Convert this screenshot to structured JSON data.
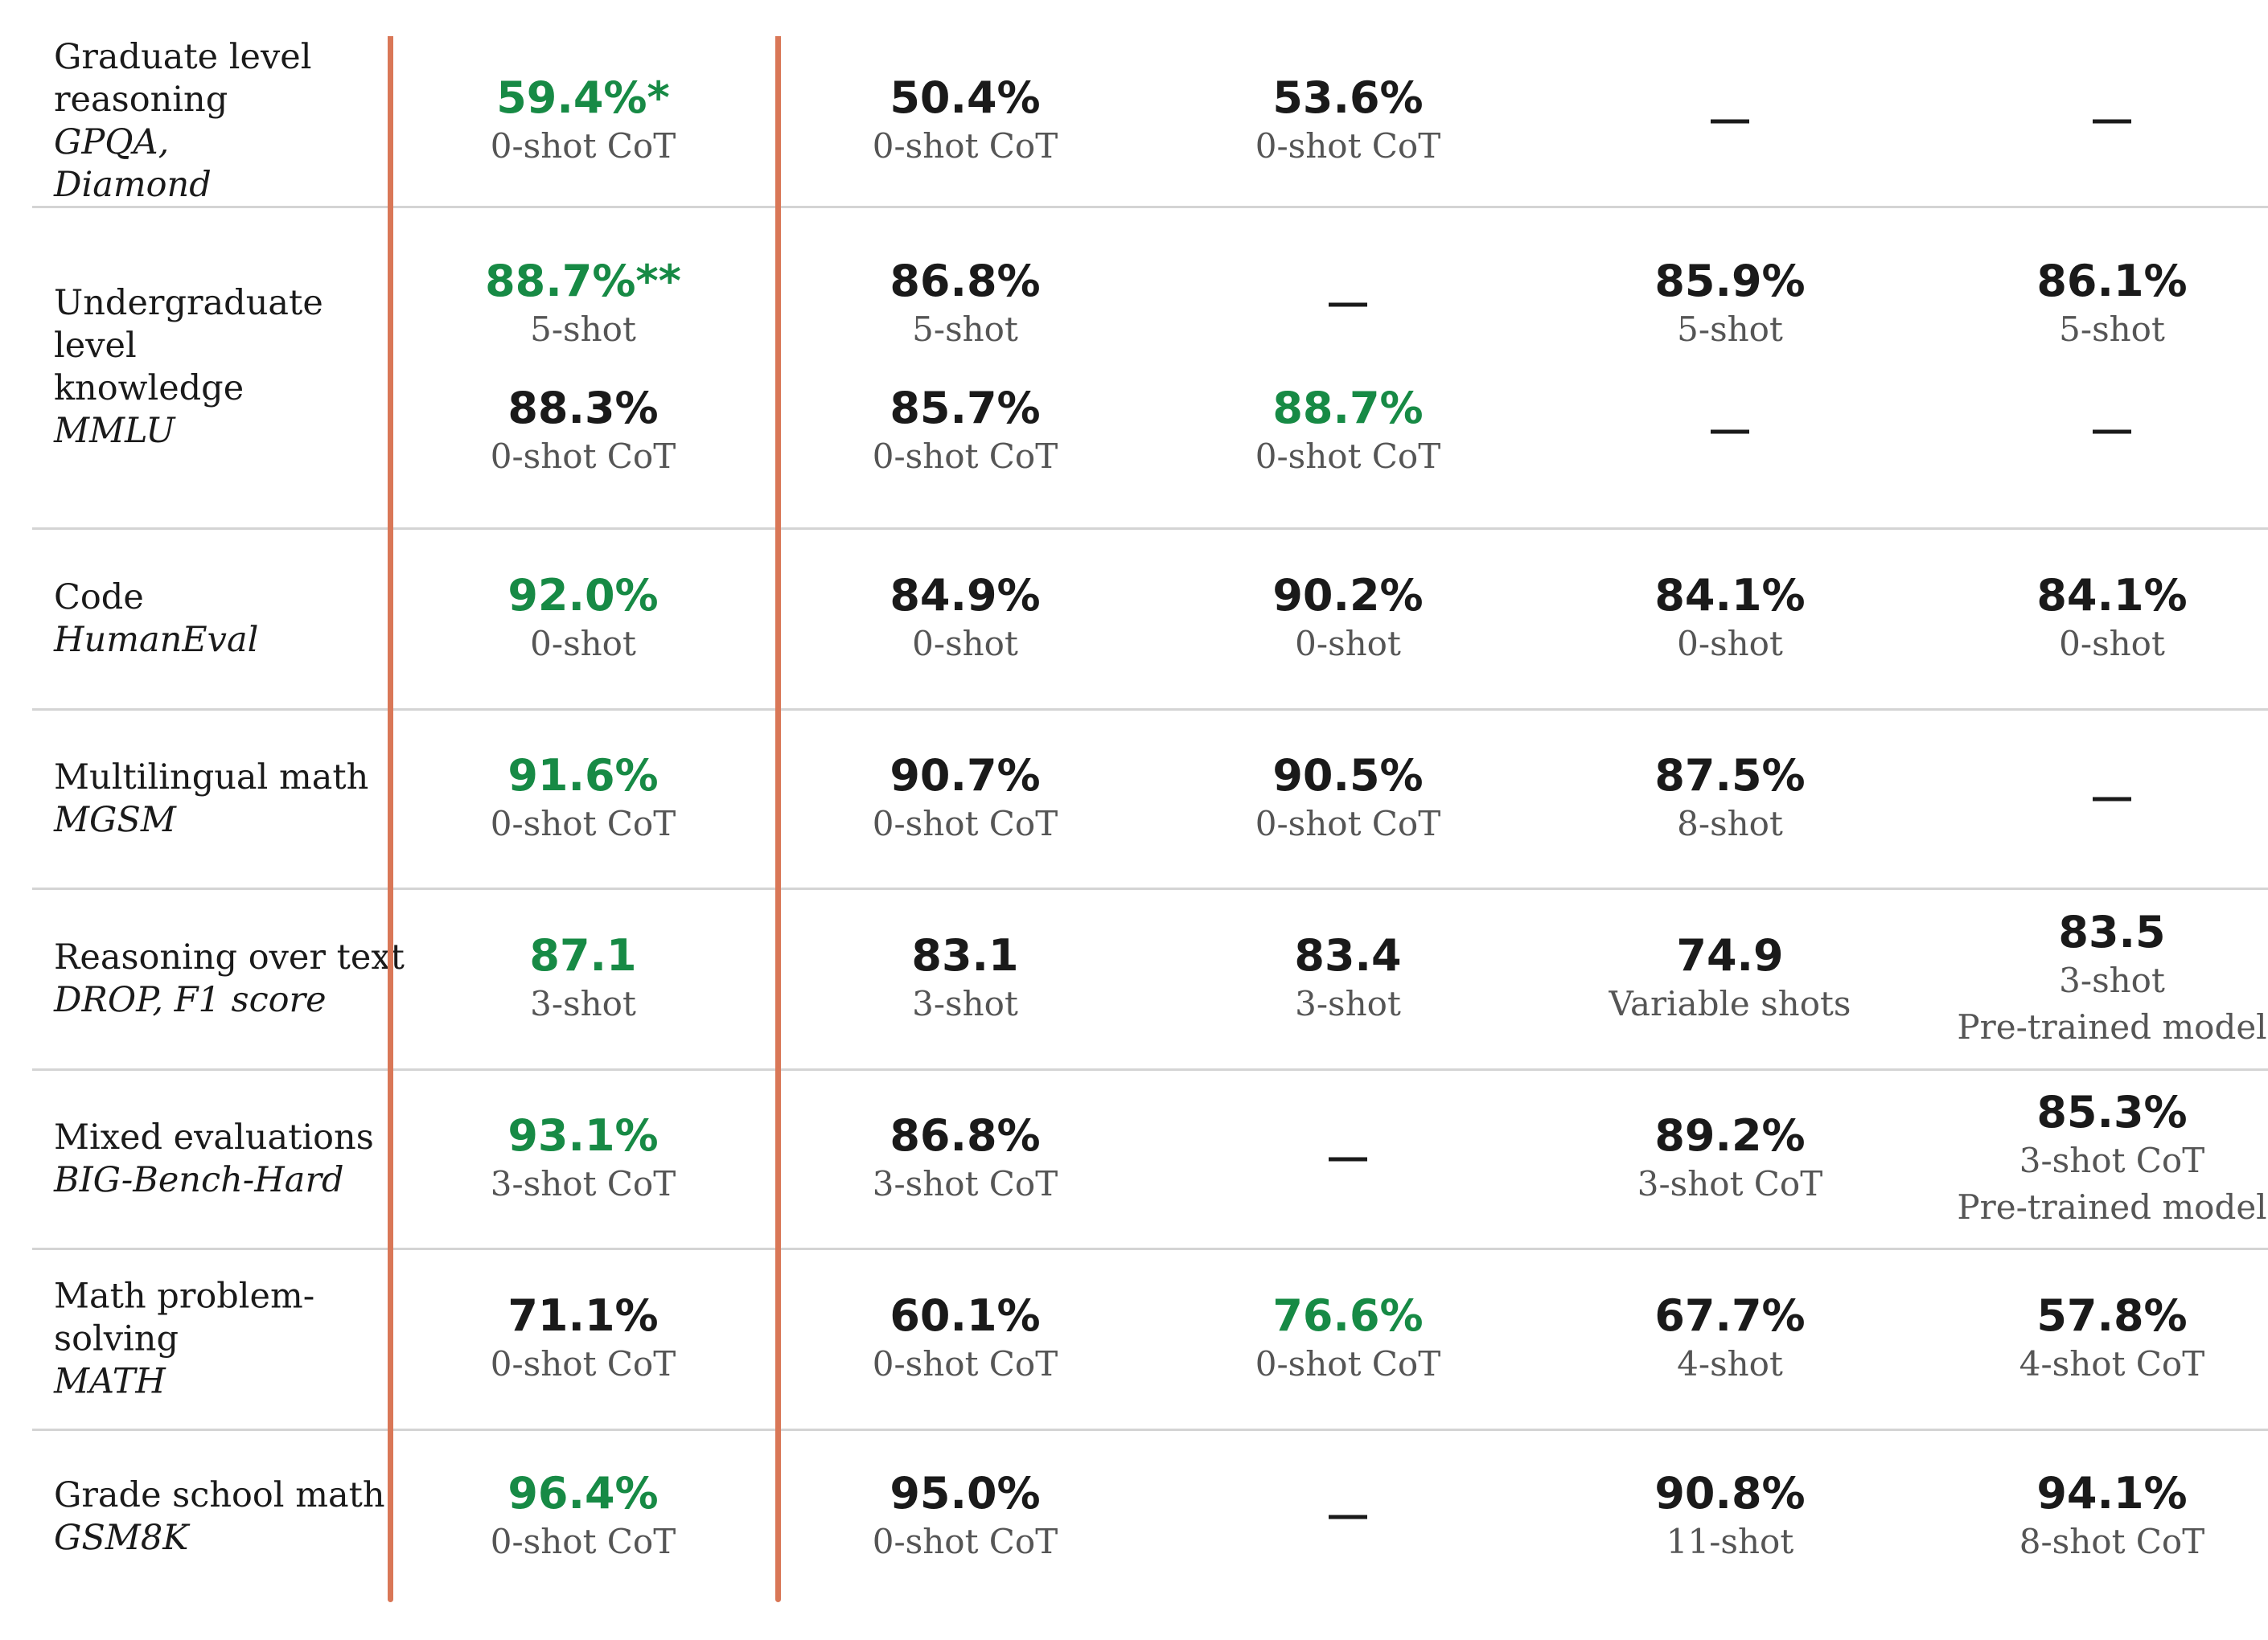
{
  "colors": {
    "accent": "#d97757",
    "best": "#178a45"
  },
  "rows": [
    {
      "title": "Graduate level reasoning",
      "bench": "GPQA, Diamond",
      "cells": [
        [
          {
            "v": "59.4%*",
            "s": "0-shot CoT",
            "best": true
          }
        ],
        [
          {
            "v": "50.4%",
            "s": "0-shot CoT"
          }
        ],
        [
          {
            "v": "53.6%",
            "s": "0-shot CoT"
          }
        ],
        [
          {
            "v": "—"
          }
        ],
        [
          {
            "v": "—"
          }
        ]
      ]
    },
    {
      "title": "Undergraduate level knowledge",
      "bench": "MMLU",
      "cells": [
        [
          {
            "v": "88.7%**",
            "s": "5-shot",
            "best": true
          },
          {
            "v": "88.3%",
            "s": "0-shot CoT"
          }
        ],
        [
          {
            "v": "86.8%",
            "s": "5-shot"
          },
          {
            "v": "85.7%",
            "s": "0-shot CoT"
          }
        ],
        [
          {
            "v": "—"
          },
          {
            "v": "88.7%",
            "s": "0-shot CoT",
            "best": true
          }
        ],
        [
          {
            "v": "85.9%",
            "s": "5-shot"
          },
          {
            "v": "—"
          }
        ],
        [
          {
            "v": "86.1%",
            "s": "5-shot"
          },
          {
            "v": "—"
          }
        ]
      ]
    },
    {
      "title": "Code",
      "bench": "HumanEval",
      "cells": [
        [
          {
            "v": "92.0%",
            "s": "0-shot",
            "best": true
          }
        ],
        [
          {
            "v": "84.9%",
            "s": "0-shot"
          }
        ],
        [
          {
            "v": "90.2%",
            "s": "0-shot"
          }
        ],
        [
          {
            "v": "84.1%",
            "s": "0-shot"
          }
        ],
        [
          {
            "v": "84.1%",
            "s": "0-shot"
          }
        ]
      ]
    },
    {
      "title": "Multilingual math",
      "bench": "MGSM",
      "cells": [
        [
          {
            "v": "91.6%",
            "s": "0-shot CoT",
            "best": true
          }
        ],
        [
          {
            "v": "90.7%",
            "s": "0-shot CoT"
          }
        ],
        [
          {
            "v": "90.5%",
            "s": "0-shot CoT"
          }
        ],
        [
          {
            "v": "87.5%",
            "s": "8-shot"
          }
        ],
        [
          {
            "v": "—"
          }
        ]
      ]
    },
    {
      "title": "Reasoning over text",
      "bench": "DROP, F1 score",
      "cells": [
        [
          {
            "v": "87.1",
            "s": "3-shot",
            "best": true
          }
        ],
        [
          {
            "v": "83.1",
            "s": "3-shot"
          }
        ],
        [
          {
            "v": "83.4",
            "s": "3-shot"
          }
        ],
        [
          {
            "v": "74.9",
            "s": "Variable shots"
          }
        ],
        [
          {
            "v": "83.5",
            "s": "3-shot",
            "s2": "Pre-trained model"
          }
        ]
      ]
    },
    {
      "title": "Mixed evaluations",
      "bench": "BIG-Bench-Hard",
      "cells": [
        [
          {
            "v": "93.1%",
            "s": "3-shot CoT",
            "best": true
          }
        ],
        [
          {
            "v": "86.8%",
            "s": "3-shot CoT"
          }
        ],
        [
          {
            "v": "—"
          }
        ],
        [
          {
            "v": "89.2%",
            "s": "3-shot CoT"
          }
        ],
        [
          {
            "v": "85.3%",
            "s": "3-shot CoT",
            "s2": "Pre-trained model"
          }
        ]
      ]
    },
    {
      "title": "Math problem-solving",
      "bench": "MATH",
      "cells": [
        [
          {
            "v": "71.1%",
            "s": "0-shot CoT"
          }
        ],
        [
          {
            "v": "60.1%",
            "s": "0-shot CoT"
          }
        ],
        [
          {
            "v": "76.6%",
            "s": "0-shot CoT",
            "best": true
          }
        ],
        [
          {
            "v": "67.7%",
            "s": "4-shot"
          }
        ],
        [
          {
            "v": "57.8%",
            "s": "4-shot CoT"
          }
        ]
      ]
    },
    {
      "title": "Grade school math",
      "bench": "GSM8K",
      "cells": [
        [
          {
            "v": "96.4%",
            "s": "0-shot CoT",
            "best": true
          }
        ],
        [
          {
            "v": "95.0%",
            "s": "0-shot CoT"
          }
        ],
        [
          {
            "v": "—"
          }
        ],
        [
          {
            "v": "90.8%",
            "s": "11-shot"
          }
        ],
        [
          {
            "v": "94.1%",
            "s": "8-shot CoT"
          }
        ]
      ]
    }
  ]
}
